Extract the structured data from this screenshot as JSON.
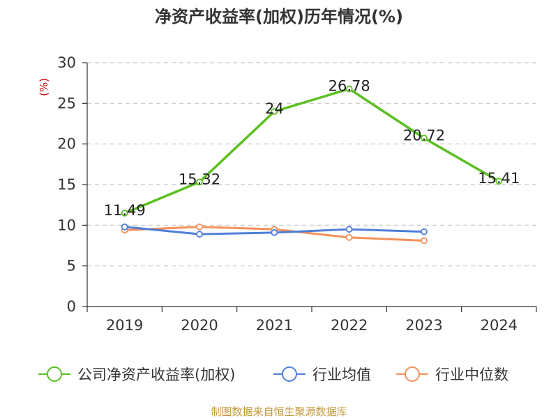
{
  "chart_data": {
    "type": "line",
    "title": "净资产收益率(加权)历年情况(%)",
    "ylabel": "(%)",
    "xlabel": "",
    "categories": [
      "2019",
      "2020",
      "2021",
      "2022",
      "2023",
      "2024"
    ],
    "ylim": [
      0,
      30
    ],
    "yticks": [
      0,
      5,
      10,
      15,
      20,
      25,
      30
    ],
    "grid": true,
    "legend_position": "bottom",
    "series": [
      {
        "name": "公司净资产收益率(加权)",
        "color": "#5bbf21",
        "values": [
          11.49,
          15.32,
          24,
          26.78,
          20.72,
          15.41
        ],
        "labels": [
          "11.49",
          "15.32",
          "24",
          "26.78",
          "20.72",
          "15.41"
        ]
      },
      {
        "name": "行业均值",
        "color": "#4f7fd9",
        "values": [
          9.8,
          8.9,
          9.1,
          9.5,
          9.2,
          null
        ]
      },
      {
        "name": "行业中位数",
        "color": "#f5905a",
        "values": [
          9.4,
          9.8,
          9.5,
          8.5,
          8.1,
          null
        ]
      }
    ],
    "source": "制图数据来自恒生聚源数据库"
  }
}
